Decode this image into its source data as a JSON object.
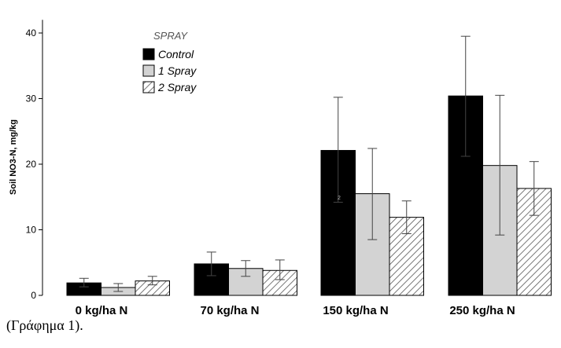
{
  "chart_data": {
    "type": "bar",
    "title": "",
    "xlabel": "",
    "ylabel": "Soil NO3-N, mg/kg",
    "ylim": [
      0,
      42
    ],
    "yticks": [
      0,
      10,
      20,
      30,
      40
    ],
    "categories": [
      "0 kg/ha N",
      "70 kg/ha N",
      "150 kg/ha N",
      "250 kg/ha N"
    ],
    "legend_title": "SPRAY",
    "legend_position": "top-left",
    "grid": false,
    "series": [
      {
        "name": "Control",
        "values": [
          1.9,
          4.8,
          22.1,
          30.4
        ],
        "err_low": [
          1.3,
          3.0,
          14.2,
          21.2
        ],
        "err_high": [
          2.6,
          6.6,
          30.2,
          39.5
        ],
        "fill": "#000000",
        "pattern": "solid"
      },
      {
        "name": "1 Spray",
        "values": [
          1.2,
          4.1,
          15.5,
          19.8
        ],
        "err_low": [
          0.6,
          2.9,
          8.5,
          9.2
        ],
        "err_high": [
          1.8,
          5.3,
          22.4,
          30.5
        ],
        "fill": "#d3d3d3",
        "pattern": "solid"
      },
      {
        "name": "2 Spray",
        "values": [
          2.2,
          3.8,
          11.9,
          16.3
        ],
        "err_low": [
          1.6,
          2.4,
          9.4,
          12.2
        ],
        "err_high": [
          2.9,
          5.4,
          14.4,
          20.4
        ],
        "fill": "#ffffff",
        "pattern": "hatch"
      }
    ],
    "stray_mark": "2"
  },
  "caption": "(Γράφημα 1)."
}
